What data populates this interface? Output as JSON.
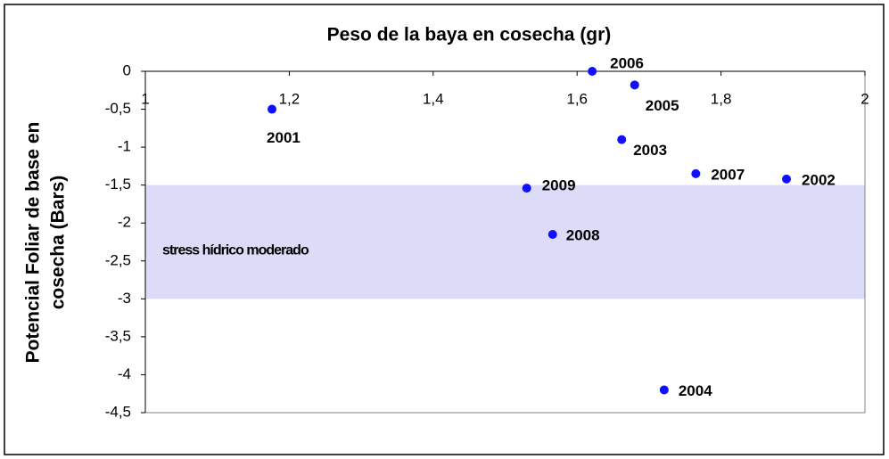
{
  "chart_data": {
    "type": "scatter",
    "title": "Peso de la baya en cosecha (gr)",
    "ylabel": [
      "Potencial Foliar de base en",
      "cosecha (Bars)"
    ],
    "series": [
      {
        "color": "#1010ff",
        "x": [
          1.176,
          1.621,
          1.68,
          1.662,
          1.765,
          1.891,
          1.53,
          1.566,
          1.721
        ],
        "values": [
          -0.5,
          0,
          -0.18,
          -0.9,
          -1.35,
          -1.42,
          -1.54,
          -2.15,
          -4.2
        ],
        "point_labels": [
          "2001",
          "2006",
          "2005",
          "2003",
          "2007",
          "2002",
          "2009",
          "2008",
          "2004"
        ]
      }
    ],
    "xlim": [
      1,
      2
    ],
    "xticks": [
      1,
      {
        "value": 1.2,
        "label": "1,2"
      },
      {
        "value": 1.4,
        "label": "1,4"
      },
      {
        "value": 1.6,
        "label": "1,6"
      },
      {
        "value": 1.8,
        "label": "1,8"
      },
      2
    ],
    "ylim": [
      -4.5,
      0
    ],
    "yticks": [
      0,
      {
        "value": -0.5,
        "label": "-0,5"
      },
      -1,
      {
        "value": -1.5,
        "label": "-1,5"
      },
      -2,
      {
        "value": -2.5,
        "label": "-2,5"
      },
      -3,
      {
        "value": -3.5,
        "label": "-3,5"
      },
      -4,
      {
        "value": -4.5,
        "label": "-4,5"
      }
    ],
    "shaded_range": {
      "ylim": [
        -3,
        -1.5
      ],
      "label": "stress hídrico moderado",
      "color": "#dcdcf8"
    }
  }
}
